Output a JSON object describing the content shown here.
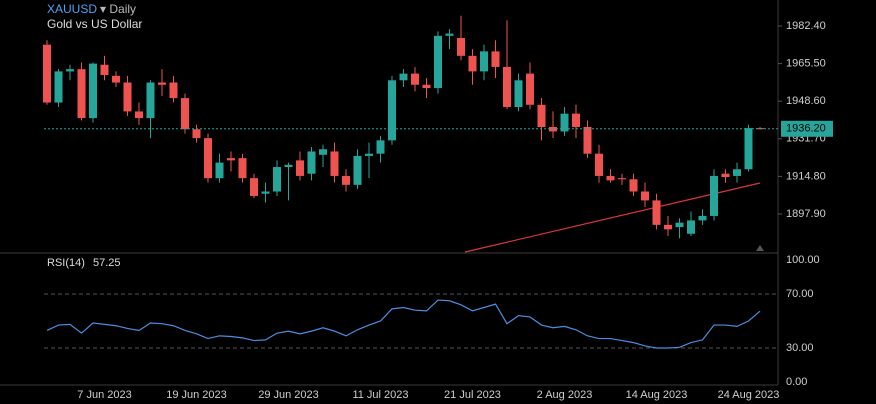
{
  "chart_data": [
    {
      "type": "candlestick",
      "title": "XAUUSD",
      "interval": "▾ Daily",
      "subtitle": "Gold vs US Dollar",
      "up_color": "#26a69a",
      "down_color": "#ef5350",
      "categories": [
        null,
        null,
        null,
        null,
        null,
        "7 Jun 2023",
        null,
        null,
        null,
        null,
        null,
        null,
        null,
        "19 Jun 2023",
        null,
        null,
        null,
        null,
        null,
        null,
        null,
        "29 Jun 2023",
        null,
        null,
        null,
        null,
        null,
        null,
        null,
        "11 Jul 2023",
        null,
        null,
        null,
        null,
        null,
        null,
        null,
        "21 Jul 2023",
        null,
        null,
        null,
        null,
        null,
        null,
        null,
        "2 Aug 2023",
        null,
        null,
        null,
        null,
        null,
        null,
        null,
        "14 Aug 2023",
        null,
        null,
        null,
        null,
        null,
        null,
        null,
        "24 Aug 2023",
        null
      ],
      "open": [
        1974,
        1948,
        1962,
        1963,
        1941,
        1965,
        1960,
        1957,
        1944,
        1941,
        1957,
        1957,
        1950,
        1936,
        1932,
        1914,
        1923,
        1923,
        1914,
        1907,
        1908,
        1919,
        1922,
        1916,
        1924.5,
        1926,
        1915,
        1911,
        1924,
        1925,
        1931,
        1958,
        1961,
        1956,
        1954.5,
        1978,
        1977,
        1969,
        1962,
        1971,
        1964,
        1946,
        1961,
        1947,
        1937,
        1935,
        1943,
        1937,
        1925,
        1915,
        1914,
        1913.5,
        1908,
        1904,
        1893,
        1892,
        1889,
        1895,
        1897,
        1916,
        1915,
        1918,
        1936.5
      ],
      "high": [
        1976,
        1963,
        1965,
        1966,
        1966,
        1969,
        1962,
        1960,
        1948,
        1958,
        1963,
        1960,
        1952,
        1938,
        1934,
        1925,
        1926,
        1925,
        1916,
        1912,
        1922,
        1921,
        1926,
        1928,
        1929,
        1930,
        1918,
        1927,
        1930,
        1933,
        1960,
        1963,
        1964,
        1959,
        1980,
        1981,
        1987,
        1972,
        1974,
        1976,
        1985,
        1961,
        1966,
        1950,
        1944,
        1946,
        1947,
        1940,
        1929,
        1918,
        1916,
        1916,
        1912,
        1907,
        1897,
        1896,
        1899,
        1900,
        1918,
        1918,
        1921,
        1938,
        1937
      ],
      "low": [
        1947,
        1946,
        1958,
        1940,
        1939,
        1958,
        1955,
        1942,
        1938,
        1932,
        1951,
        1948,
        1934,
        1930,
        1912,
        1912,
        1917,
        1912,
        1905,
        1903,
        1906,
        1904,
        1913,
        1913,
        1919,
        1912,
        1908,
        1909,
        1914,
        1921,
        1929,
        1955,
        1953,
        1950,
        1952,
        1972,
        1967,
        1956,
        1958,
        1959,
        1945,
        1944,
        1945,
        1931,
        1932,
        1933,
        1932,
        1923,
        1912,
        1912,
        1911,
        1906,
        1901,
        1891,
        1888,
        1887,
        1888,
        1893,
        1895,
        1912,
        1912,
        1917,
        1935.8
      ],
      "close": [
        1948,
        1962,
        1963,
        1941,
        1965.5,
        1960.4,
        1957,
        1944,
        1941,
        1957,
        1956,
        1950,
        1936,
        1932,
        1914,
        1921,
        1922,
        1914,
        1906,
        1908,
        1919,
        1920,
        1915,
        1926,
        1927,
        1915,
        1911,
        1924,
        1925,
        1931,
        1958,
        1961,
        1956,
        1954.5,
        1978,
        1979,
        1969,
        1962,
        1971,
        1964,
        1946,
        1958,
        1947,
        1937,
        1935,
        1943,
        1937,
        1925,
        1915,
        1913,
        1913.5,
        1908,
        1904,
        1893,
        1891,
        1894,
        1895,
        1897,
        1915,
        1914.5,
        1918,
        1936.5,
        1936.2
      ],
      "ylim": [
        1880.8,
        1994.1
      ],
      "yticks": [
        {
          "value": 1982.4,
          "label": "1982.40"
        },
        {
          "value": 1965.5,
          "label": "1965.50"
        },
        {
          "value": 1948.6,
          "label": "1948.60"
        },
        {
          "value": 1931.7,
          "label": "1931.70"
        },
        {
          "value": 1914.8,
          "label": "1914.80"
        },
        {
          "value": 1897.9,
          "label": "1897.90"
        }
      ],
      "last_price": {
        "value": 1936.2,
        "label": "1936.20"
      },
      "last_price_color": "#26a69a"
    },
    {
      "type": "line",
      "title": "RSI(14)",
      "current": 57.25,
      "color": "#4a8fe0",
      "values": [
        43,
        47,
        47.5,
        41,
        48.5,
        47.5,
        46.5,
        44.5,
        43,
        48.5,
        48,
        46.5,
        43,
        40.5,
        37,
        39,
        38.5,
        37.5,
        35.5,
        36,
        41,
        42.5,
        40.5,
        42.5,
        45,
        42.5,
        39,
        43.5,
        47,
        50,
        59,
        60,
        58,
        57.5,
        65.5,
        65,
        62,
        57.5,
        60,
        62.5,
        48,
        54,
        53,
        47,
        45,
        46,
        43.5,
        39,
        37,
        37,
        35.5,
        34,
        31.5,
        30,
        30,
        30.5,
        34,
        36,
        47,
        47,
        46,
        50,
        57.25
      ],
      "ylim": [
        0,
        100
      ],
      "yticks": [
        {
          "value": 100,
          "label": "100.00"
        },
        {
          "value": 70,
          "label": "70.00"
        },
        {
          "value": 30,
          "label": "30.00"
        },
        {
          "value": 0,
          "label": "0.00"
        }
      ]
    }
  ]
}
